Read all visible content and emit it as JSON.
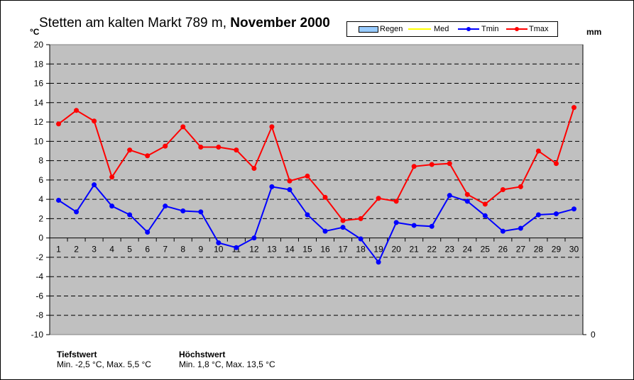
{
  "title": {
    "prefix": "Stetten am kalten Markt 789 m,",
    "highlight": "November 2000"
  },
  "left_unit": "°C",
  "right_unit": "mm",
  "legend": [
    {
      "label": "Regen",
      "color": "#99ccff",
      "kind": "bar"
    },
    {
      "label": "Med",
      "color": "#ffff00",
      "kind": "line"
    },
    {
      "label": "Tmin",
      "color": "#0000ff",
      "kind": "line"
    },
    {
      "label": "Tmax",
      "color": "#ff0000",
      "kind": "line"
    }
  ],
  "stats": {
    "low_heading": "Tiefstwert",
    "low_text": "Min. -2,5 °C, Max. 5,5 °C",
    "high_heading": "Höchstwert",
    "high_text": "Min. 1,8 °C, Max. 13,5 °C"
  },
  "chart_data": {
    "type": "line",
    "title": "Stetten am kalten Markt 789 m, November 2000",
    "ylabel": "°C",
    "y2label": "mm",
    "ylim": [
      -10,
      20
    ],
    "yticks": [
      20,
      18,
      16,
      14,
      12,
      10,
      8,
      6,
      4,
      2,
      0,
      -2,
      -4,
      -6,
      -8,
      -10
    ],
    "y2ticks": [
      0
    ],
    "grid": true,
    "legend_position": "top-right",
    "plot_background": "#c0c0c0",
    "x": [
      1,
      2,
      3,
      4,
      5,
      6,
      7,
      8,
      9,
      10,
      11,
      12,
      13,
      14,
      15,
      16,
      17,
      18,
      19,
      20,
      21,
      22,
      23,
      24,
      25,
      26,
      27,
      28,
      29,
      30
    ],
    "series": [
      {
        "name": "Tmin",
        "color": "#0000ff",
        "values": [
          3.9,
          2.7,
          5.5,
          3.3,
          2.4,
          0.6,
          3.3,
          2.8,
          2.7,
          -0.5,
          -1.0,
          0.0,
          5.3,
          5.0,
          2.4,
          0.7,
          1.1,
          -0.1,
          -2.5,
          1.6,
          1.3,
          1.2,
          4.4,
          3.8,
          2.3,
          0.7,
          1.0,
          2.4,
          2.5,
          3.0
        ]
      },
      {
        "name": "Tmax",
        "color": "#ff0000",
        "values": [
          11.8,
          13.2,
          12.1,
          6.3,
          9.1,
          8.5,
          9.5,
          11.5,
          9.4,
          9.4,
          9.1,
          7.2,
          11.5,
          5.9,
          6.4,
          4.2,
          1.8,
          2.0,
          4.1,
          3.8,
          7.4,
          7.6,
          7.7,
          4.5,
          3.5,
          5.0,
          5.3,
          9.0,
          7.7,
          13.5
        ]
      }
    ]
  }
}
